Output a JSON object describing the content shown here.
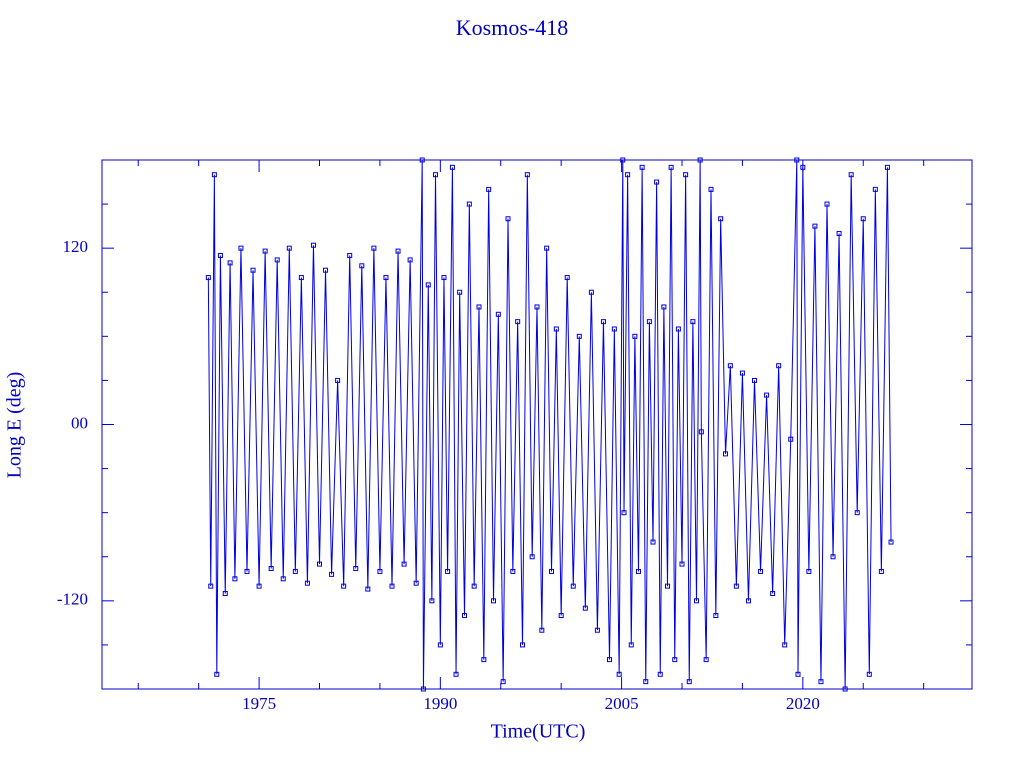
{
  "chart_data": {
    "type": "line",
    "title": "Kosmos-418",
    "x_label": "Time(UTC)",
    "y_label": "Long E (deg)",
    "color": "#0000e0",
    "markers": true,
    "xlim": [
      1962,
      2034
    ],
    "ylim": [
      -180,
      180
    ],
    "xticks": [
      1975,
      1990,
      2005,
      2020
    ],
    "xminorticks": [
      1965,
      1970,
      1980,
      1985,
      1995,
      2000,
      2010,
      2015,
      2025,
      2030
    ],
    "yticks": [
      -120,
      {
        "value": 0,
        "label": "00"
      },
      120
    ],
    "yminorticks": [
      -150,
      -90,
      -60,
      -30,
      30,
      60,
      90,
      150
    ],
    "x": [
      1970.8,
      1971.0,
      1971.3,
      1971.5,
      1971.8,
      1972.2,
      1972.6,
      1973.0,
      1973.5,
      1974.0,
      1974.5,
      1975.0,
      1975.5,
      1976.0,
      1976.5,
      1977.0,
      1977.5,
      1978.0,
      1978.5,
      1979.0,
      1979.5,
      1980.0,
      1980.5,
      1981.0,
      1981.5,
      1982.0,
      1982.5,
      1983.0,
      1983.5,
      1984.0,
      1984.5,
      1985.0,
      1985.5,
      1986.0,
      1986.5,
      1987.0,
      1987.5,
      1988.0,
      1988.5,
      1988.6,
      1989.0,
      1989.3,
      1989.6,
      1990.0,
      1990.3,
      1990.6,
      1991.0,
      1991.3,
      1991.6,
      1992.0,
      1992.4,
      1992.8,
      1993.2,
      1993.6,
      1994.0,
      1994.4,
      1994.8,
      1995.2,
      1995.6,
      1996.0,
      1996.4,
      1996.8,
      1997.2,
      1997.6,
      1998.0,
      1998.4,
      1998.8,
      1999.2,
      1999.6,
      2000.0,
      2000.5,
      2001.0,
      2001.5,
      2002.0,
      2002.5,
      2003.0,
      2003.5,
      2004.0,
      2004.4,
      2004.8,
      2005.1,
      2005.2,
      2005.5,
      2005.8,
      2006.1,
      2006.4,
      2006.7,
      2007.0,
      2007.3,
      2007.6,
      2007.9,
      2008.2,
      2008.5,
      2008.8,
      2009.1,
      2009.4,
      2009.7,
      2010.0,
      2010.3,
      2010.6,
      2010.9,
      2011.2,
      2011.5,
      2011.6,
      2012.0,
      2012.4,
      2012.8,
      2013.2,
      2013.6,
      2014.0,
      2014.5,
      2015.0,
      2015.5,
      2016.0,
      2016.5,
      2017.0,
      2017.5,
      2018.0,
      2018.5,
      2019.0,
      2019.5,
      2019.6,
      2020.0,
      2020.5,
      2021.0,
      2021.5,
      2022.0,
      2022.5,
      2023.0,
      2023.5,
      2024.0,
      2024.5,
      2025.0,
      2025.5,
      2026.0,
      2026.5,
      2027.0,
      2027.3
    ],
    "values": [
      100,
      -110,
      170,
      -170,
      115,
      -115,
      110,
      -105,
      120,
      -100,
      105,
      -110,
      118,
      -98,
      112,
      -105,
      120,
      -100,
      100,
      -108,
      122,
      -95,
      105,
      -102,
      30,
      -110,
      115,
      -98,
      108,
      -112,
      120,
      -100,
      100,
      -110,
      118,
      -95,
      112,
      -108,
      180,
      -180,
      95,
      -120,
      170,
      -150,
      100,
      -100,
      175,
      -170,
      90,
      -130,
      150,
      -110,
      80,
      -160,
      160,
      -120,
      75,
      -175,
      140,
      -100,
      70,
      -150,
      170,
      -90,
      80,
      -140,
      120,
      -100,
      65,
      -130,
      100,
      -110,
      60,
      -125,
      90,
      -140,
      70,
      -160,
      65,
      -170,
      180,
      -60,
      170,
      -150,
      60,
      -100,
      175,
      -175,
      70,
      -80,
      165,
      -170,
      80,
      -110,
      175,
      -160,
      65,
      -95,
      170,
      -175,
      70,
      -120,
      180,
      -5,
      -160,
      160,
      -130,
      140,
      -20,
      40,
      -110,
      35,
      -120,
      30,
      -100,
      20,
      -115,
      40,
      -150,
      -10,
      180,
      -170,
      175,
      -100,
      135,
      -175,
      150,
      -90,
      130,
      -180,
      170,
      -60,
      140,
      -170,
      160,
      -100,
      175,
      -80
    ]
  }
}
